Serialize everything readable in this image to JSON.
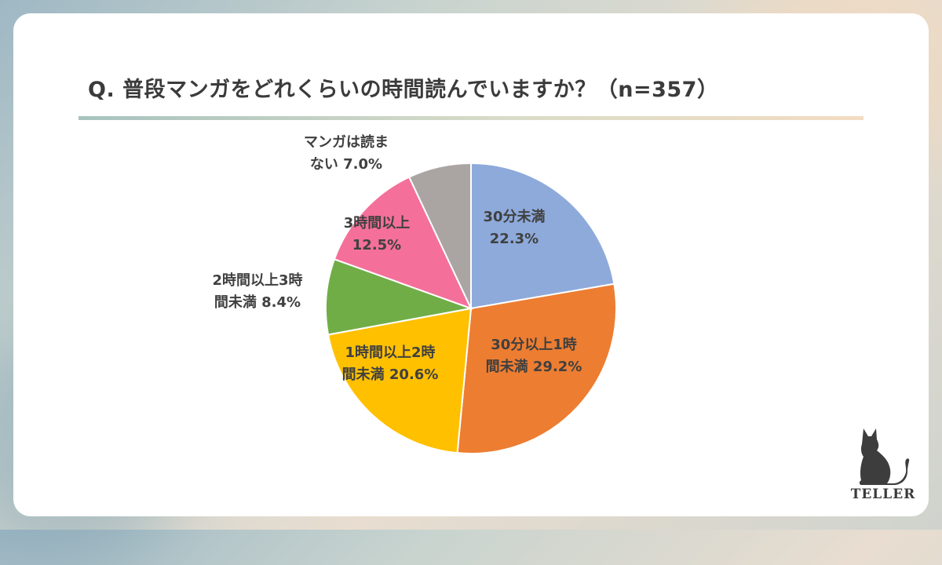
{
  "title": "Q. 普段マンガをどれくらいの時間読んでいますか？（n=357）",
  "brand": {
    "name": "TELLER",
    "icon": "cat-icon"
  },
  "chart_data": {
    "type": "pie",
    "title": "Q. 普段マンガをどれくらいの時間読んでいますか？（n=357）",
    "slices": [
      {
        "name": "30分未満",
        "value": 22.3,
        "label": [
          "30分未満",
          "22.3%"
        ],
        "color": "#8eaadb"
      },
      {
        "name": "30分以上1時間未満",
        "value": 29.2,
        "label": [
          "30分以上1時",
          "間未満 29.2%"
        ],
        "color": "#ed7d31"
      },
      {
        "name": "1時間以上2時間未満",
        "value": 20.6,
        "label": [
          "1時間以上2時",
          "間未満 20.6%"
        ],
        "color": "#ffc000"
      },
      {
        "name": "2時間以上3時間未満",
        "value": 8.4,
        "label": [
          "2時間以上3時",
          "間未満 8.4%"
        ],
        "color": "#70ad47"
      },
      {
        "name": "3時間以上",
        "value": 12.5,
        "label": [
          "3時間以上",
          "12.5%"
        ],
        "color": "#f4709a"
      },
      {
        "name": "マンガは読まない",
        "value": 7.0,
        "label": [
          "マンガは読ま",
          "ない 7.0%"
        ],
        "color": "#aaa5a3"
      }
    ]
  }
}
